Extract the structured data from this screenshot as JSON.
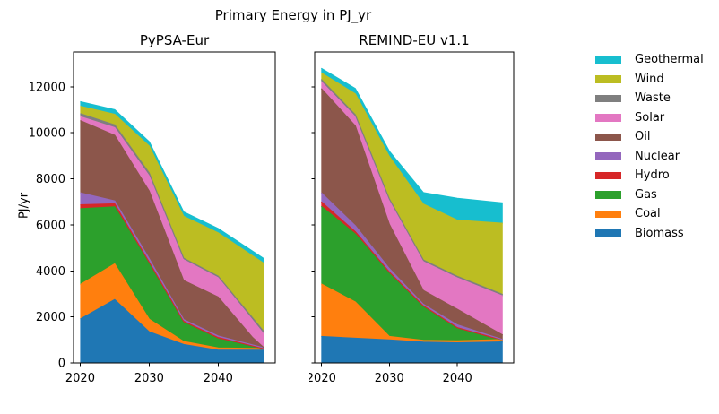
{
  "figure": {
    "title": "Primary Energy in PJ_yr"
  },
  "axes": {
    "ylabel": "PJ/yr",
    "xtick_labels": [
      "2020",
      "2030",
      "2040"
    ],
    "yticks": [
      0,
      2000,
      4000,
      6000,
      8000,
      10000,
      12000
    ],
    "ytick_labels": [
      "0",
      "2000",
      "4000",
      "6000",
      "8000",
      "10000",
      "12000"
    ],
    "ylim": [
      0,
      13510
    ],
    "spine_color": "#000000"
  },
  "legend": {
    "position": "right",
    "items": [
      {
        "label": "Geothermal",
        "color": "#17becf"
      },
      {
        "label": "Wind",
        "color": "#bcbd22"
      },
      {
        "label": "Waste",
        "color": "#7f7f7f"
      },
      {
        "label": "Solar",
        "color": "#e377c2"
      },
      {
        "label": "Oil",
        "color": "#8c564b"
      },
      {
        "label": "Nuclear",
        "color": "#9467bd"
      },
      {
        "label": "Hydro",
        "color": "#d62728"
      },
      {
        "label": "Gas",
        "color": "#2ca02c"
      },
      {
        "label": "Coal",
        "color": "#ff7f0e"
      },
      {
        "label": "Biomass",
        "color": "#1f77b4"
      }
    ]
  },
  "chart_data": {
    "type": "area",
    "stacked": true,
    "title": "Primary Energy in PJ_yr",
    "ylabel": "PJ/yr",
    "ylim": [
      0,
      13510
    ],
    "grid": false,
    "x": [
      2020,
      2025,
      2030,
      2035,
      2040,
      2045
    ],
    "stack_order_bottom_to_top": [
      "Biomass",
      "Coal",
      "Gas",
      "Hydro",
      "Nuclear",
      "Oil",
      "Solar",
      "Waste",
      "Wind",
      "Geothermal"
    ],
    "colors": {
      "Biomass": "#1f77b4",
      "Coal": "#ff7f0e",
      "Gas": "#2ca02c",
      "Hydro": "#d62728",
      "Nuclear": "#9467bd",
      "Oil": "#8c564b",
      "Solar": "#e377c2",
      "Waste": "#7f7f7f",
      "Wind": "#bcbd22",
      "Geothermal": "#17becf"
    },
    "panels": [
      {
        "title": "PyPSA-Eur",
        "series": [
          {
            "name": "Biomass",
            "values": [
              1900,
              2750,
              1350,
              800,
              550,
              550
            ]
          },
          {
            "name": "Coal",
            "values": [
              1500,
              1550,
              550,
              130,
              100,
              80
            ]
          },
          {
            "name": "Gas",
            "values": [
              3300,
              2480,
              2400,
              820,
              390,
              90
            ]
          },
          {
            "name": "Hydro",
            "values": [
              170,
              130,
              80,
              60,
              60,
              20
            ]
          },
          {
            "name": "Nuclear",
            "values": [
              520,
              130,
              150,
              70,
              70,
              40
            ]
          },
          {
            "name": "Oil",
            "values": [
              3140,
              2850,
              2940,
              1700,
              1690,
              320
            ]
          },
          {
            "name": "Solar",
            "values": [
              170,
              330,
              650,
              900,
              840,
              750
            ]
          },
          {
            "name": "Waste",
            "values": [
              130,
              120,
              130,
              70,
              70,
              100
            ]
          },
          {
            "name": "Wind",
            "values": [
              320,
              460,
              1170,
              1820,
              1880,
              2700
            ]
          },
          {
            "name": "Geothermal",
            "values": [
              200,
              200,
              190,
              190,
              190,
              200
            ]
          }
        ]
      },
      {
        "title": "REMIND-EU v1.1",
        "series": [
          {
            "name": "Biomass",
            "values": [
              1150,
              1070,
              1000,
              900,
              870,
              900
            ]
          },
          {
            "name": "Coal",
            "values": [
              2280,
              1580,
              150,
              80,
              90,
              100
            ]
          },
          {
            "name": "Gas",
            "values": [
              3370,
              2950,
              2750,
              1470,
              540,
              100
            ]
          },
          {
            "name": "Hydro",
            "values": [
              200,
              100,
              50,
              30,
              30,
              20
            ]
          },
          {
            "name": "Nuclear",
            "values": [
              390,
              260,
              150,
              70,
              120,
              50
            ]
          },
          {
            "name": "Oil",
            "values": [
              4530,
              4340,
              1930,
              600,
              680,
              320
            ]
          },
          {
            "name": "Solar",
            "values": [
              300,
              390,
              1030,
              1250,
              1360,
              1610
            ]
          },
          {
            "name": "Waste",
            "values": [
              100,
              90,
              70,
              70,
              70,
              70
            ]
          },
          {
            "name": "Wind",
            "values": [
              280,
              910,
              1840,
              2430,
              2440,
              2930
            ]
          },
          {
            "name": "Geothermal",
            "values": [
              200,
              230,
              230,
              500,
              950,
              900
            ]
          }
        ]
      }
    ]
  }
}
